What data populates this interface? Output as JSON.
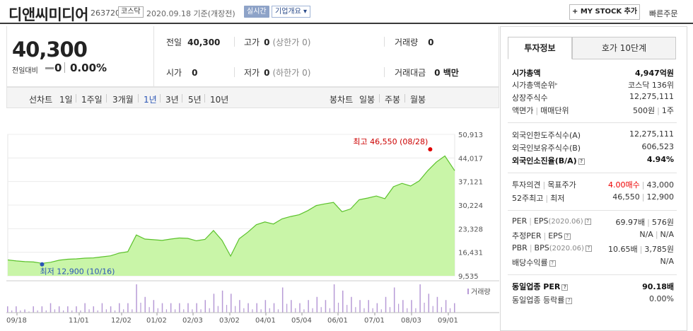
{
  "header": {
    "title": "디앤씨미디어",
    "code": "263720",
    "market": "코스닥",
    "date": "2020.09.18 기준(개장전)",
    "realtime": "실시간",
    "company": "기업개요 ▾",
    "mystock": "+ MY STOCK 추가",
    "quick_order": "빠른주문"
  },
  "summary": {
    "price": "40,300",
    "change_label": "전일대비",
    "change_value": "0",
    "change_pct": "0.00%",
    "prev_label": "전일",
    "prev_value": "40,300",
    "high_label": "고가",
    "high_value": "0",
    "high_sub": "(상한가 0)",
    "volume_label": "거래량",
    "volume_value": "0",
    "open_label": "시가",
    "open_value": "0",
    "low_label": "저가",
    "low_value": "0",
    "low_sub": "(하한가 0)",
    "amount_label": "거래대금",
    "amount_value": "0 백만"
  },
  "periods": {
    "line_label": "선차트",
    "items": [
      "1일",
      "1주일",
      "3개월",
      "1년",
      "3년",
      "5년",
      "10년"
    ],
    "active": "1년",
    "candle_label": "봉차트",
    "candle_items": [
      "일봉",
      "주봉",
      "월봉"
    ]
  },
  "chart_data": {
    "type": "area",
    "x": [
      "2019-09-18",
      "2019-09-25",
      "2019-10-02",
      "2019-10-09",
      "2019-10-16",
      "2019-10-23",
      "2019-10-30",
      "2019-11-06",
      "2019-11-13",
      "2019-11-20",
      "2019-11-27",
      "2019-12-04",
      "2019-12-11",
      "2019-12-18",
      "2019-12-25",
      "2020-01-01",
      "2020-01-08",
      "2020-01-15",
      "2020-01-22",
      "2020-01-29",
      "2020-02-05",
      "2020-02-12",
      "2020-02-19",
      "2020-02-26",
      "2020-03-04",
      "2020-03-11",
      "2020-03-18",
      "2020-03-25",
      "2020-04-01",
      "2020-04-08",
      "2020-04-15",
      "2020-04-22",
      "2020-04-29",
      "2020-05-06",
      "2020-05-13",
      "2020-05-20",
      "2020-05-27",
      "2020-06-03",
      "2020-06-10",
      "2020-06-17",
      "2020-06-24",
      "2020-07-01",
      "2020-07-08",
      "2020-07-15",
      "2020-07-22",
      "2020-07-29",
      "2020-08-05",
      "2020-08-12",
      "2020-08-19",
      "2020-08-26",
      "2020-09-02",
      "2020-09-09",
      "2020-09-17"
    ],
    "values": [
      14200,
      13900,
      13700,
      13600,
      13200,
      13500,
      14100,
      14400,
      14500,
      14700,
      14800,
      15100,
      15400,
      16200,
      16600,
      21500,
      20300,
      20100,
      19900,
      20300,
      20600,
      20500,
      19800,
      20200,
      22800,
      19900,
      15300,
      20400,
      22300,
      24500,
      25300,
      24700,
      26200,
      26900,
      27400,
      28600,
      30100,
      30600,
      31000,
      28300,
      29100,
      31800,
      32300,
      32900,
      32100,
      35600,
      36600,
      35800,
      37300,
      40300,
      42800,
      44600,
      40300
    ],
    "x_ticks": [
      "09/18",
      "11/01",
      "12/02",
      "01/02",
      "02/03",
      "03/02",
      "04/01",
      "05/04",
      "06/01",
      "07/01",
      "08/03",
      "09/01"
    ],
    "y_ticks": [
      "50,913",
      "44,017",
      "37,121",
      "30,224",
      "23,328",
      "16,431",
      "9,535"
    ],
    "ylim": [
      9535,
      50913
    ],
    "high_label": "최고 46,550 (08/28)",
    "high": {
      "x": "2020-08-28",
      "value": 46550
    },
    "low_label": "최저 12,900 (10/16)",
    "low": {
      "x": "2019-10-16",
      "value": 12900
    },
    "volume_label": "거래량",
    "volume": [
      2,
      2,
      1,
      2,
      2,
      3,
      2,
      2,
      2,
      3,
      2,
      3,
      2,
      3,
      3,
      9,
      5,
      4,
      3,
      3,
      3,
      3,
      3,
      4,
      6,
      7,
      6,
      4,
      3,
      3,
      4,
      3,
      8,
      4,
      3,
      4,
      5,
      4,
      9,
      7,
      5,
      4,
      4,
      3,
      5,
      8,
      4,
      4,
      9,
      6,
      5,
      4,
      3
    ]
  },
  "info": {
    "tab_active": "투자정보",
    "tab_inactive": "호가 10단계",
    "rows1": [
      {
        "label": "시가총액",
        "value": "4,947억원",
        "bold": true
      },
      {
        "label": "시가총액순위",
        "value": "코스닥 136위"
      },
      {
        "label": "상장주식수",
        "value": "12,275,111"
      },
      {
        "label": "액면가",
        "label2": "매매단위",
        "value": "500원",
        "value2": "1주"
      }
    ],
    "rows2": [
      {
        "label": "외국인한도주식수(A)",
        "value": "12,275,111"
      },
      {
        "label": "외국인보유주식수(B)",
        "value": "606,523"
      },
      {
        "label": "외국인소진율(B/A)",
        "value": "4.94%",
        "bold": true
      }
    ],
    "opinion_label": "투자의견",
    "target_label": "목표주가",
    "opinion_value": "4.00매수",
    "target_value": "43,000",
    "w52_label": "52주최고",
    "w52_low_label": "최저",
    "w52_high": "46,550",
    "w52_low": "12,900",
    "per_label": "PER",
    "eps_label": "EPS",
    "eps_date": "(2020.06)",
    "per_value": "69.97배",
    "eps_value": "576원",
    "est_per_label": "추정PER",
    "est_eps_label": "EPS",
    "est_per_value": "N/A",
    "est_eps_value": "N/A",
    "pbr_label": "PBR",
    "bps_label": "BPS",
    "bps_date": "(2020.06)",
    "pbr_value": "10.65배",
    "bps_value": "3,785원",
    "div_label": "배당수익률",
    "div_value": "N/A",
    "ind_per_label": "동일업종 PER",
    "ind_per_value": "90.18배",
    "ind_rate_label": "동일업종 등락률",
    "ind_rate_value": "0.00%",
    "q": "?"
  },
  "colors": {
    "accent": "#2a55b5",
    "area_fill": "#c9f5a8",
    "area_line": "#5cc22c",
    "up": "#e00000",
    "volume": "#b79ad6"
  }
}
